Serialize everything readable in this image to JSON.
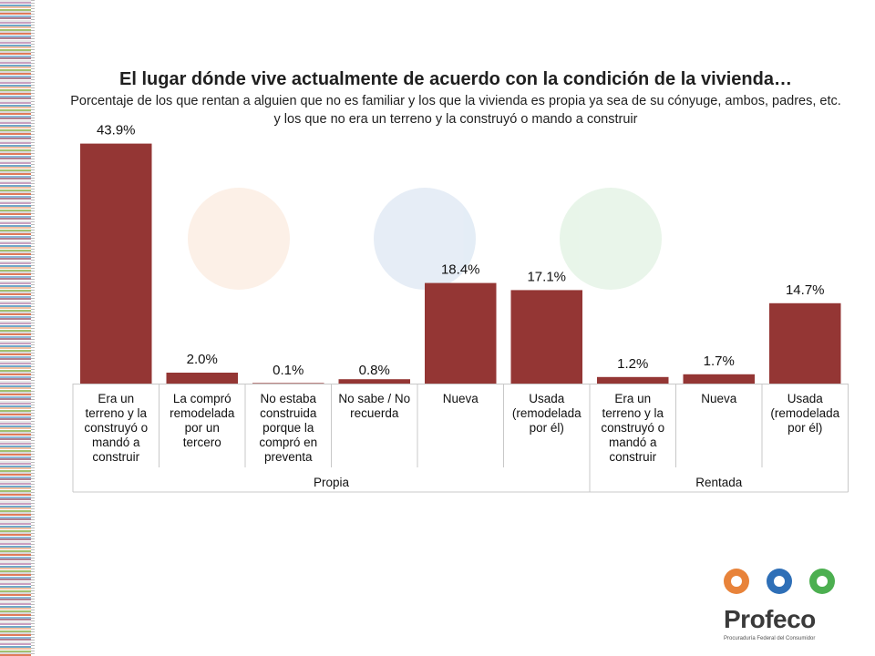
{
  "title": "El lugar dónde vive actualmente de acuerdo con la condición de la vivienda…",
  "subtitle_line1": "Porcentaje de los que rentan a alguien que no es familiar y los que la vivienda es propia ya sea de su cónyuge, ambos, padres, etc.",
  "subtitle_line2": "y los que no era un terreno y la construyó o mando a construir",
  "chart_data": {
    "type": "bar",
    "title": "El lugar dónde vive actualmente de acuerdo con la condición de la vivienda…",
    "xlabel": "",
    "ylabel": "",
    "ylim": [
      0,
      50
    ],
    "grid": false,
    "legend": "none",
    "bar_color": "#943634",
    "categories": [
      "Era un terreno y la construyó o mandó a construir",
      "La compró remodelada por un tercero",
      "No estaba construida porque la compró en preventa",
      "No sabe / No recuerda",
      "Nueva",
      "Usada (remodelada por él)",
      "Era un terreno y la construyó o mandó a construir",
      "Nueva",
      "Usada (remodelada por él)"
    ],
    "category_lines": [
      [
        "Era un",
        "terreno y la",
        "construyó o",
        "mandó a",
        "construir"
      ],
      [
        "La compró",
        "remodelada",
        "por un",
        "tercero"
      ],
      [
        "No estaba",
        "construida",
        "porque la",
        "compró en",
        "preventa"
      ],
      [
        "No sabe / No",
        "recuerda"
      ],
      [
        "Nueva"
      ],
      [
        "Usada",
        "(remodelada",
        "por él)"
      ],
      [
        "Era un",
        "terreno y la",
        "construyó o",
        "mandó a",
        "construir"
      ],
      [
        "Nueva"
      ],
      [
        "Usada",
        "(remodelada",
        "por él)"
      ]
    ],
    "values": [
      43.9,
      2.0,
      0.1,
      0.8,
      18.4,
      17.1,
      1.2,
      1.7,
      14.7
    ],
    "value_labels": [
      "43.9%",
      "2.0%",
      "0.1%",
      "0.8%",
      "18.4%",
      "17.1%",
      "1.2%",
      "1.7%",
      "14.7%"
    ],
    "groups": [
      {
        "name": "Propia",
        "count": 6
      },
      {
        "name": "Rentada",
        "count": 3
      }
    ]
  },
  "logo": {
    "name": "Profeco",
    "tagline": "Procuraduría Federal del Consumidor",
    "colors": [
      "#e8833a",
      "#2e6fb7",
      "#4caf50"
    ]
  }
}
